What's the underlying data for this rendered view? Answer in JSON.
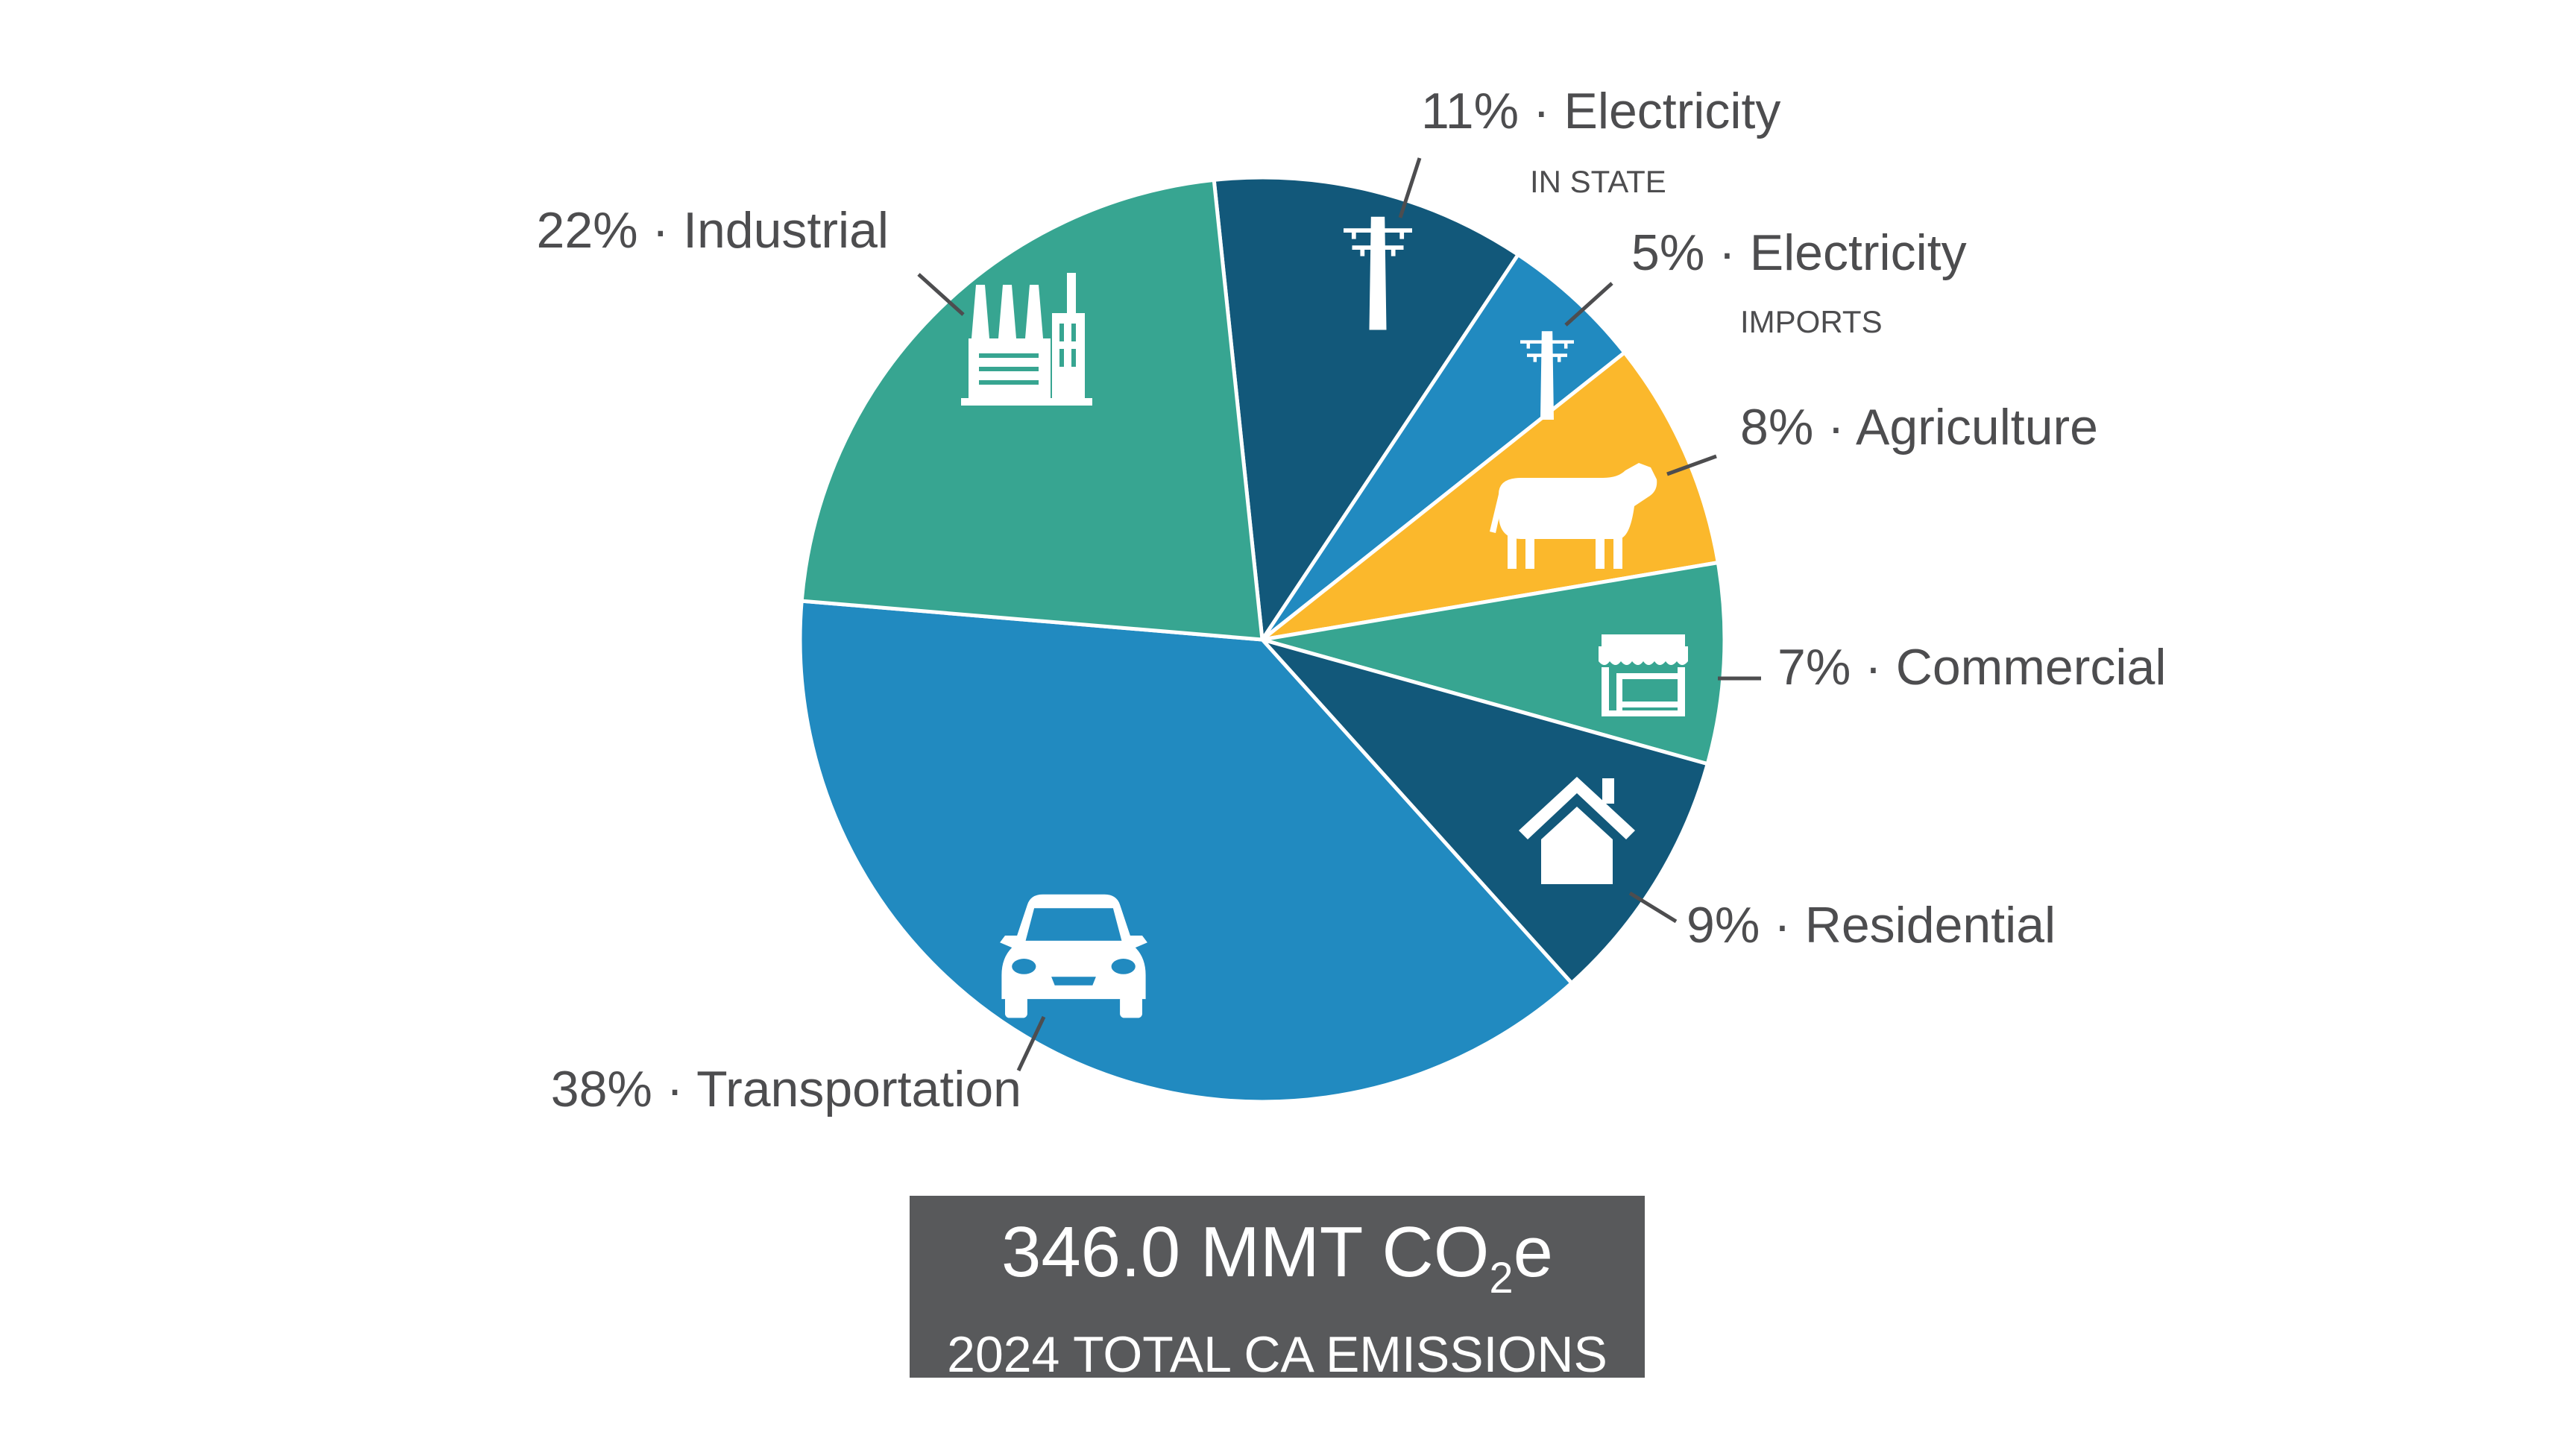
{
  "chart_data": {
    "type": "pie",
    "slices": [
      {
        "label": "Electricity",
        "sublabel": "IN STATE",
        "value": 11,
        "value_label": "11%",
        "color": "#12587a",
        "icon": "power-tower-icon"
      },
      {
        "label": "Electricity",
        "sublabel": "IMPORTS",
        "value": 5,
        "value_label": "5%",
        "color": "#218ac0",
        "icon": "power-tower-icon"
      },
      {
        "label": "Agriculture",
        "sublabel": "",
        "value": 8,
        "value_label": "8%",
        "color": "#fbb82c",
        "icon": "cow-icon"
      },
      {
        "label": "Commercial",
        "sublabel": "",
        "value": 7,
        "value_label": "7%",
        "color": "#37a591",
        "icon": "storefront-icon"
      },
      {
        "label": "Residential",
        "sublabel": "",
        "value": 9,
        "value_label": "9%",
        "color": "#12587a",
        "icon": "house-icon"
      },
      {
        "label": "Transportation",
        "sublabel": "",
        "value": 38,
        "value_label": "38%",
        "color": "#218ac0",
        "icon": "car-icon"
      },
      {
        "label": "Industrial",
        "sublabel": "",
        "value": 22,
        "value_label": "22%",
        "color": "#37a591",
        "icon": "factory-icon"
      }
    ],
    "separator": "·",
    "label_color": "#4d4d4f"
  },
  "total": {
    "value": "346.0 MMT CO",
    "subscript": "2",
    "suffix": "e",
    "caption": "2024 TOTAL CA EMISSIONS",
    "box_color": "#58595b"
  }
}
